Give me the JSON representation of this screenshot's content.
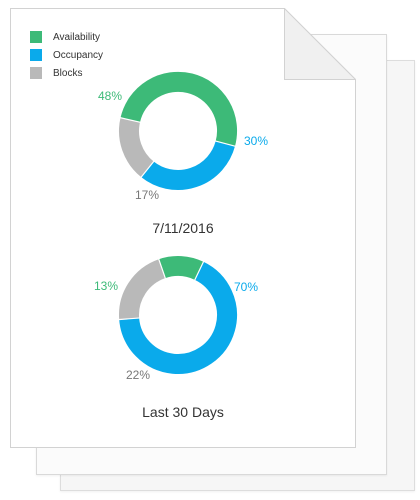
{
  "colors": {
    "availability": "#3dba78",
    "occupancy": "#0aaaeb",
    "blocks": "#b9b9b9"
  },
  "legend": [
    {
      "label": "Availability",
      "color": "#3dba78",
      "icon": "green-square-icon"
    },
    {
      "label": "Occupancy",
      "color": "#0aaaeb",
      "icon": "blue-square-icon"
    },
    {
      "label": "Blocks",
      "color": "#b9b9b9",
      "icon": "gray-square-icon"
    }
  ],
  "chart_data": [
    {
      "type": "pie",
      "variant": "donut",
      "title": "7/11/2016",
      "categories": [
        "Availability",
        "Occupancy",
        "Blocks"
      ],
      "values": [
        48,
        30,
        17
      ],
      "labels": [
        "48%",
        "30%",
        "17%"
      ]
    },
    {
      "type": "pie",
      "variant": "donut",
      "title": "Last 30 Days",
      "categories": [
        "Availability",
        "Occupancy",
        "Blocks"
      ],
      "values": [
        13,
        70,
        22
      ],
      "labels": [
        "13%",
        "70%",
        "22%"
      ]
    }
  ]
}
